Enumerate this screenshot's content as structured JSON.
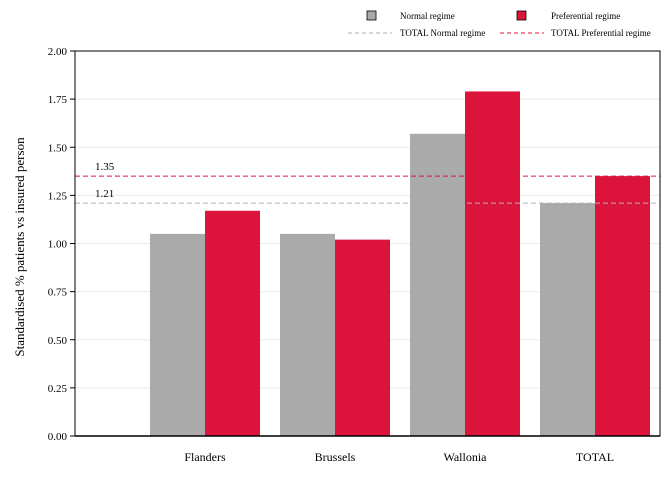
{
  "chart_data": {
    "type": "bar",
    "title": "",
    "xlabel": "",
    "ylabel": "Standardised % patients vs insured person",
    "categories": [
      "Flanders",
      "Brussels",
      "Wallonia",
      "TOTAL"
    ],
    "series": [
      {
        "name": "Normal regime",
        "values": [
          1.05,
          1.05,
          1.57,
          1.21
        ],
        "color": "#aaaaaa"
      },
      {
        "name": "Preferential regime",
        "values": [
          1.17,
          1.02,
          1.79,
          1.35
        ],
        "color": "#dc143c"
      }
    ],
    "reference_lines": [
      {
        "name": "TOTAL Normal regime",
        "value": 1.21,
        "label": "1.21",
        "color": "#b0b0b0",
        "style": "dashed"
      },
      {
        "name": "TOTAL Preferential regime",
        "value": 1.35,
        "label": "1.35",
        "color": "#dc143c",
        "style": "dashed"
      }
    ],
    "ylim": [
      0,
      2.0
    ],
    "yticks": [
      "0.00",
      "0.25",
      "0.50",
      "0.75",
      "1.00",
      "1.25",
      "1.50",
      "1.75",
      "2.00"
    ],
    "grid": true,
    "legend_position": "top"
  }
}
